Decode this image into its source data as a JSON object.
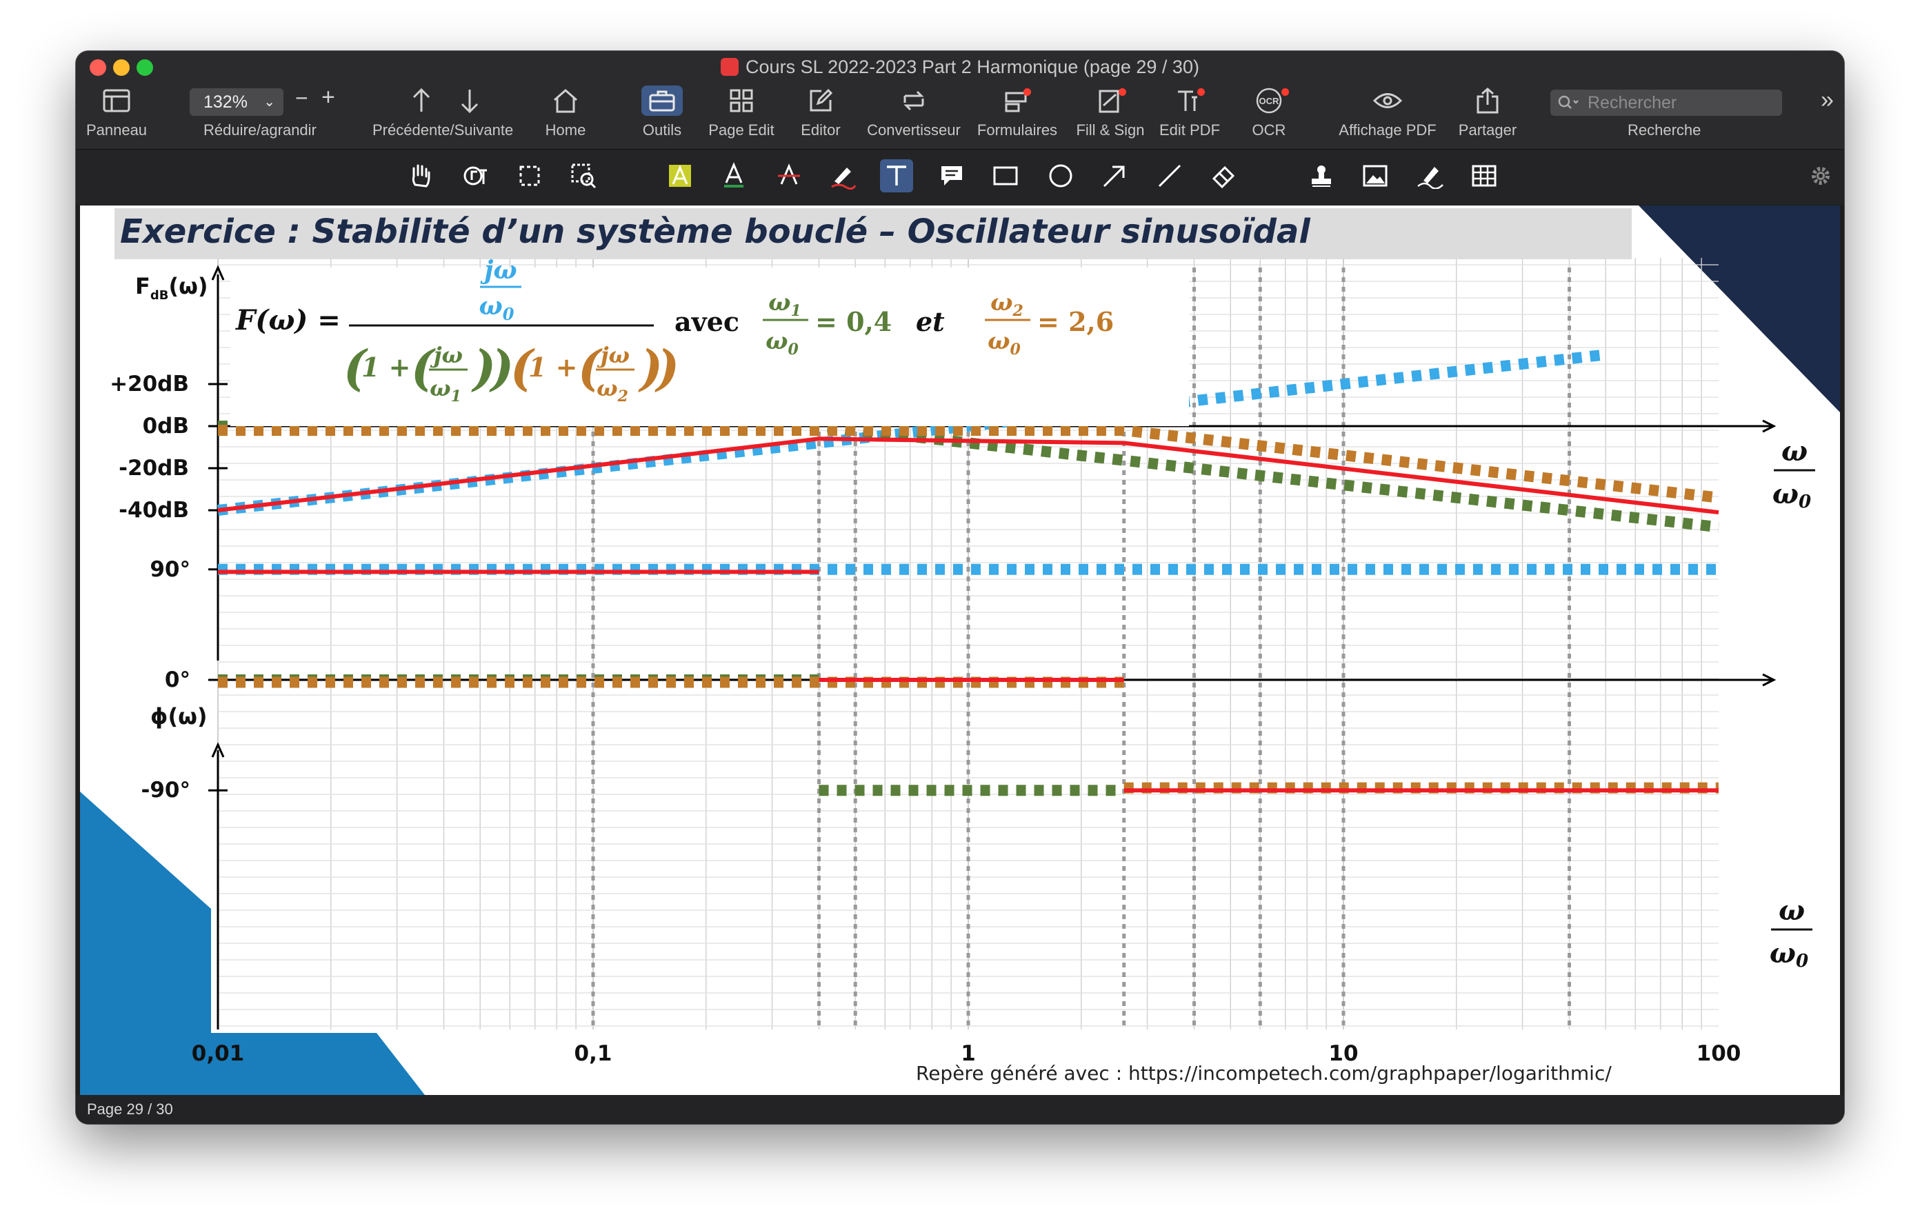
{
  "window": {
    "title": "Cours SL 2022-2023 Part 2 Harmonique (page 29 / 30)"
  },
  "toolbar": {
    "panneau": "Panneau",
    "zoom_value": "132%",
    "zoom_label": "Réduire/agrandir",
    "nav_label": "Précédente/Suivante",
    "home": "Home",
    "outils": "Outils",
    "page_edit": "Page Edit",
    "editor": "Editor",
    "convertisseur": "Convertisseur",
    "formulaires": "Formulaires",
    "fill_sign": "Fill & Sign",
    "edit_pdf": "Edit PDF",
    "ocr": "OCR",
    "ocr_icon_text": "OCR",
    "affichage": "Affichage PDF",
    "partager": "Partager",
    "search_placeholder": "Rechercher",
    "recherche": "Recherche",
    "zoom_minus": "−",
    "zoom_plus": "+",
    "more": "»"
  },
  "page": {
    "heading": "Exercice : Stabilité d’un système bouclé – Oscillateur sinusoïdal",
    "mag_axis_label": "F",
    "mag_axis_sub": "dB",
    "mag_axis_arg": "(ω)",
    "phase_axis_label": "ϕ(ω)",
    "db_ticks": [
      "+20dB",
      "0dB",
      "-20dB",
      "-40dB"
    ],
    "phase_ticks": [
      "90°",
      "0°",
      "-90°"
    ],
    "x_ticks": [
      "0,01",
      "0,1",
      "1",
      "10",
      "100"
    ],
    "omega_axis": {
      "num": "ω",
      "den": "ω",
      "den_sub": "0"
    },
    "footer": "Repère généré avec  : https://incompetech.com/graphpaper/logarithmic/",
    "formula": {
      "lhs": "F(ω) =",
      "num_num": "jω",
      "num_den": "ω",
      "num_den_sub": "0",
      "den_part1_lead": "1 + ",
      "den_part1_num": "jω",
      "den_part1_den": "ω",
      "den_part1_sub": "1",
      "den_part2_lead": "1 + ",
      "den_part2_num": "jω",
      "den_part2_den": "ω",
      "den_part2_sub": "2",
      "avec": "avec",
      "et": "et",
      "r1_num": "ω",
      "r1_num_sub": "1",
      "r1_den": "ω",
      "r1_den_sub": "0",
      "r1_value": "= 0,4",
      "r2_num": "ω",
      "r2_num_sub": "2",
      "r2_den": "ω",
      "r2_den_sub": "0",
      "r2_value": "= 2,6"
    }
  },
  "status": {
    "page_label": "Page 29 / 30"
  },
  "colors": {
    "blue": "#3aaae8",
    "green": "#5a7f3a",
    "orange": "#c07a2a",
    "red": "#ee1c25",
    "navy": "#1d2b4a",
    "accent_blue": "#1a7dbc"
  },
  "chart_data": {
    "type": "line",
    "xscale": "log",
    "xlim": [
      0.01,
      100
    ],
    "magnitude": {
      "ylabel": "FdB(ω)",
      "series": [
        {
          "color": "blue",
          "style": "dotted",
          "x": [
            0.01,
            50
          ],
          "y": [
            -40,
            34
          ]
        },
        {
          "color": "green",
          "style": "dotted",
          "x": [
            0.01,
            0.4,
            100
          ],
          "y": [
            0,
            0,
            -48
          ]
        },
        {
          "color": "orange",
          "style": "dotted",
          "x": [
            0.01,
            2.6,
            100
          ],
          "y": [
            -2,
            -2,
            -34
          ]
        },
        {
          "color": "red",
          "style": "solid",
          "x": [
            0.01,
            0.4,
            2.6,
            100
          ],
          "y": [
            -40,
            -6,
            -8,
            -41
          ]
        }
      ]
    },
    "phase": {
      "ylabel": "ϕ(ω)",
      "series": [
        {
          "color": "blue",
          "style": "dotted",
          "x": [
            0.01,
            100
          ],
          "y": [
            90,
            90
          ]
        },
        {
          "color": "green",
          "style": "dotted",
          "x": [
            0.01,
            0.4
          ],
          "y": [
            0,
            0
          ]
        },
        {
          "color": "green",
          "style": "dotted",
          "x": [
            0.4,
            2.6
          ],
          "y": [
            -90,
            -90
          ]
        },
        {
          "color": "orange",
          "style": "dotted",
          "x": [
            0.01,
            2.6
          ],
          "y": [
            -2,
            -2
          ]
        },
        {
          "color": "orange",
          "style": "dotted",
          "x": [
            2.6,
            100
          ],
          "y": [
            -88,
            -88
          ]
        },
        {
          "color": "red",
          "style": "solid",
          "x": [
            0.01,
            0.4
          ],
          "y": [
            88,
            88
          ]
        },
        {
          "color": "red",
          "style": "solid",
          "x": [
            0.4,
            2.6
          ],
          "y": [
            0,
            0
          ]
        },
        {
          "color": "red",
          "style": "solid",
          "x": [
            2.6,
            100
          ],
          "y": [
            -90,
            -90
          ]
        }
      ]
    },
    "vertical_markers": [
      0.4,
      2.6,
      0.1,
      1,
      10,
      0.5,
      4,
      6,
      40
    ]
  }
}
